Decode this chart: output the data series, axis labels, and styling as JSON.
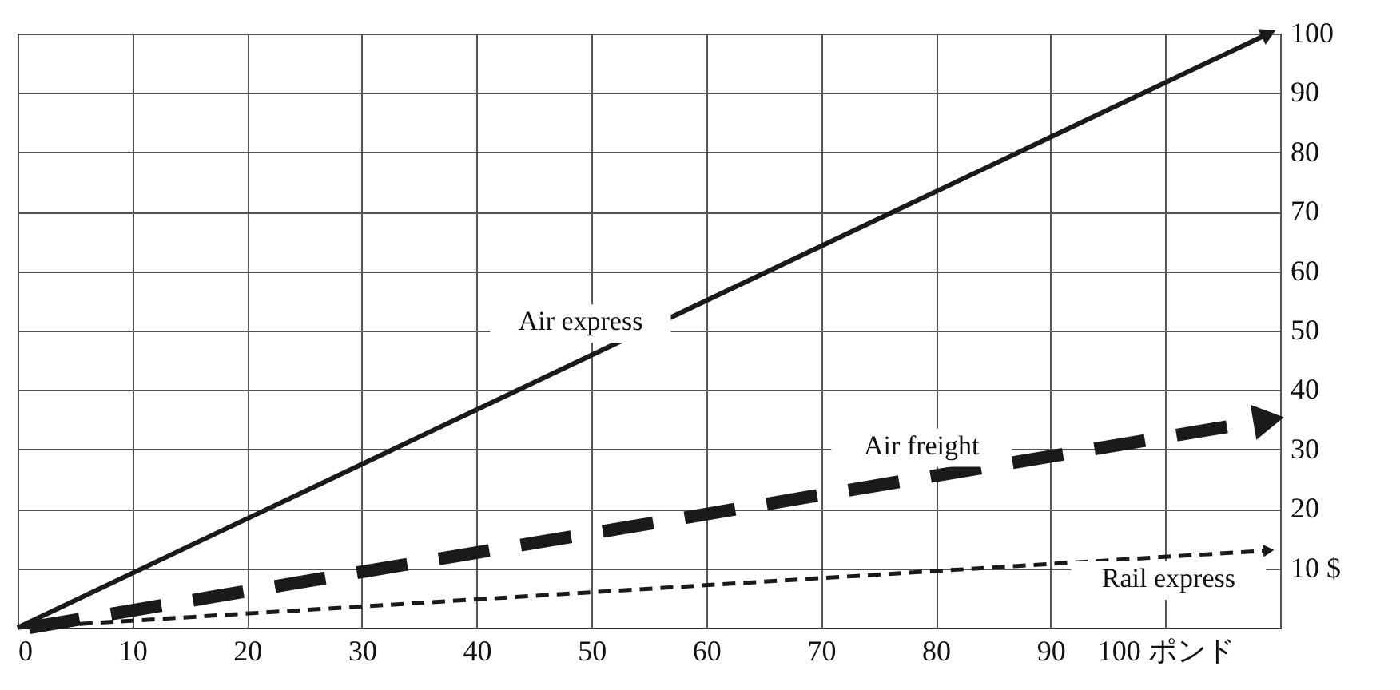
{
  "chart_data": {
    "type": "line",
    "series": [
      {
        "name": "Air express",
        "color": "#1a1a1a",
        "x": [
          0,
          109
        ],
        "values": [
          0,
          100
        ],
        "line_style": "solid"
      },
      {
        "name": "Air freight",
        "color": "#1a1a1a",
        "x": [
          1,
          109
        ],
        "values": [
          0,
          35
        ],
        "line_style": "dashed"
      },
      {
        "name": "Rail express",
        "color": "#1a1a1a",
        "x": [
          0,
          109
        ],
        "values": [
          0,
          13
        ],
        "line_style": "dashed"
      }
    ],
    "xlim": [
      0,
      110
    ],
    "ylim": [
      0,
      100
    ],
    "xticks": [
      0,
      10,
      20,
      30,
      40,
      50,
      60,
      70,
      80,
      90,
      {
        "value": 100,
        "label": "100 ポンド"
      },
      {
        "value": 110,
        "label": null
      }
    ],
    "yticks": [
      {
        "value": 10,
        "label": "10 $"
      },
      20,
      30,
      40,
      50,
      60,
      70,
      80,
      90,
      100
    ],
    "grid": true,
    "marker": "triangle"
  }
}
